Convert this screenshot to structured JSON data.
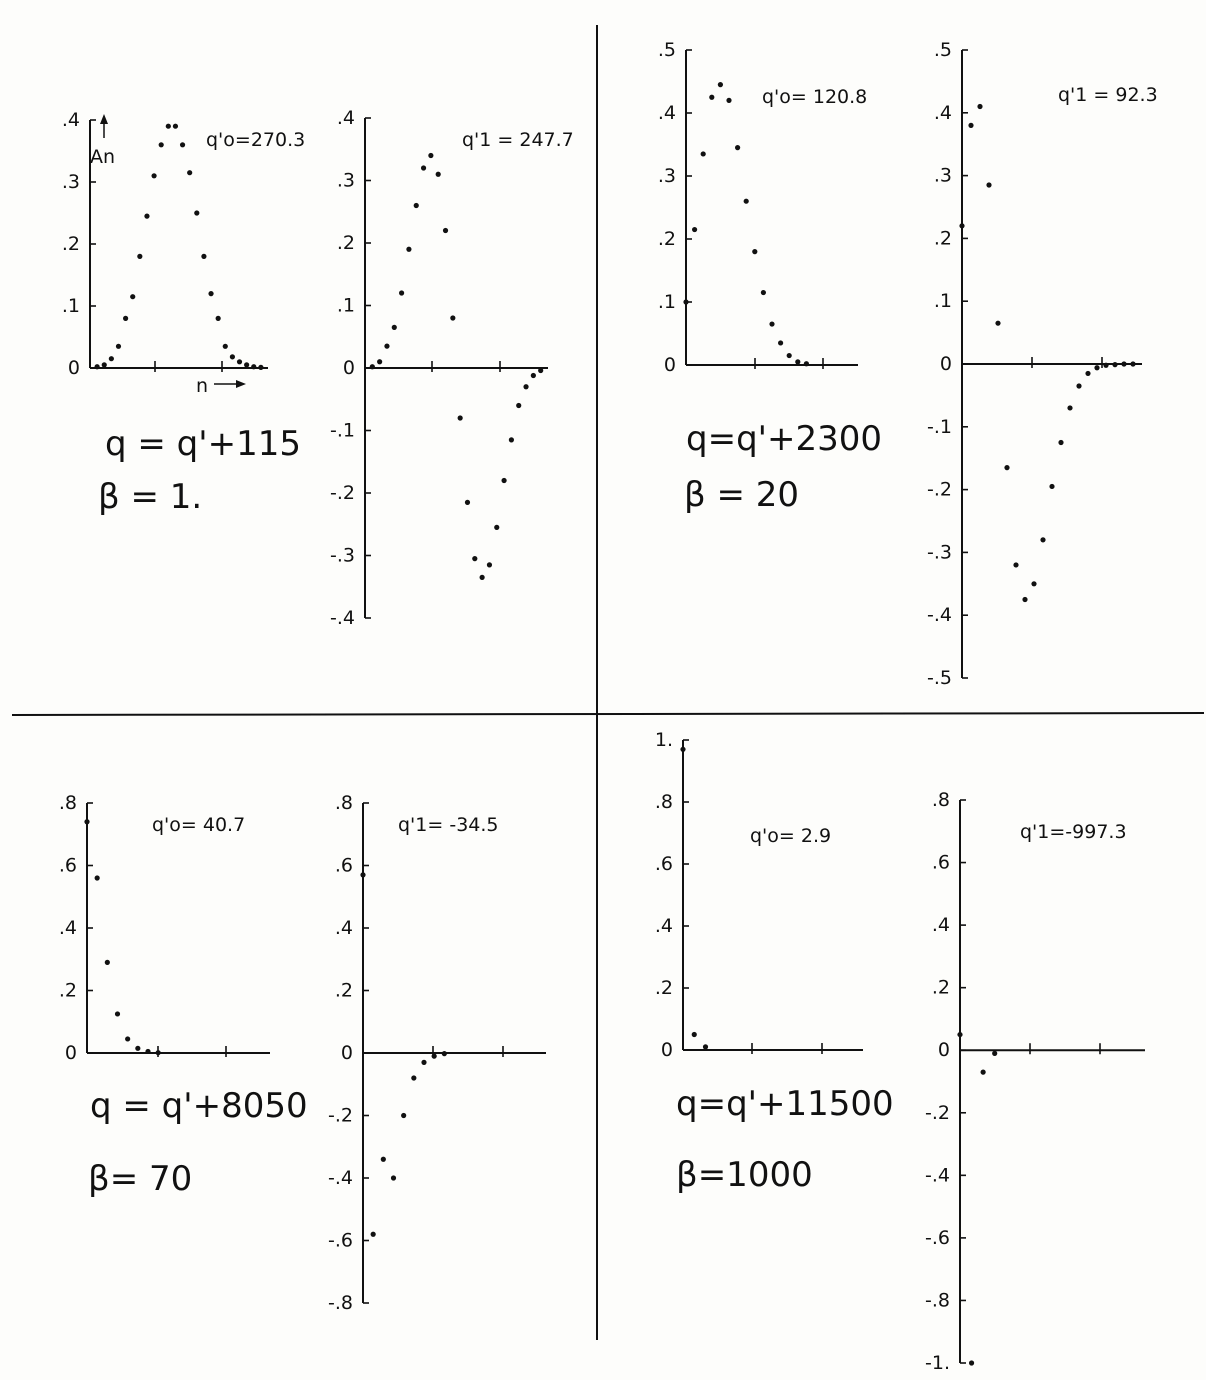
{
  "panels": [
    {
      "equation": "q = q'+115",
      "beta": "β = 1.",
      "y_axis_name": "An",
      "x_axis_name": "n",
      "charts": [
        {
          "type": "scatter",
          "title": "q'o=270.3",
          "ylim": [
            0,
            0.4
          ],
          "yticks": [
            {
              "v": 0,
              "t": "0"
            },
            {
              "v": 0.1,
              "t": ".1"
            },
            {
              "v": 0.2,
              "t": ".2"
            },
            {
              "v": 0.3,
              "t": ".3"
            },
            {
              "v": 0.4,
              "t": ".4"
            }
          ],
          "x": [
            1,
            2,
            3,
            4,
            5,
            6,
            7,
            8,
            9,
            10,
            11,
            12,
            13,
            14,
            15,
            16,
            17,
            18,
            19,
            20,
            21,
            22,
            23,
            24
          ],
          "y": [
            0.002,
            0.005,
            0.015,
            0.035,
            0.08,
            0.115,
            0.18,
            0.245,
            0.31,
            0.36,
            0.39,
            0.39,
            0.36,
            0.315,
            0.25,
            0.18,
            0.12,
            0.08,
            0.035,
            0.018,
            0.01,
            0.005,
            0.002,
            0.001
          ]
        },
        {
          "type": "scatter",
          "title": "q'1 = 247.7",
          "ylim": [
            -0.4,
            0.4
          ],
          "yticks": [
            {
              "v": -0.4,
              "t": "-.4"
            },
            {
              "v": -0.3,
              "t": "-.3"
            },
            {
              "v": -0.2,
              "t": "-.2"
            },
            {
              "v": -0.1,
              "t": "-.1"
            },
            {
              "v": 0,
              "t": "0"
            },
            {
              "v": 0.1,
              "t": ".1"
            },
            {
              "v": 0.2,
              "t": ".2"
            },
            {
              "v": 0.3,
              "t": ".3"
            },
            {
              "v": 0.4,
              "t": ".4"
            }
          ],
          "x": [
            1,
            2,
            3,
            4,
            5,
            6,
            7,
            8,
            9,
            10,
            11,
            12,
            13,
            14,
            15,
            16,
            17,
            18,
            19,
            20,
            21,
            22,
            23,
            24
          ],
          "y": [
            0.002,
            0.01,
            0.035,
            0.065,
            0.12,
            0.19,
            0.26,
            0.32,
            0.34,
            0.31,
            0.22,
            0.08,
            -0.08,
            -0.215,
            -0.305,
            -0.335,
            -0.315,
            -0.255,
            -0.18,
            -0.115,
            -0.06,
            -0.03,
            -0.012,
            -0.004
          ]
        }
      ]
    },
    {
      "equation": "q=q'+2300",
      "beta": "β = 20",
      "charts": [
        {
          "type": "scatter",
          "title": "q'o= 120.8",
          "ylim": [
            0,
            0.5
          ],
          "yticks": [
            {
              "v": 0,
              "t": "0"
            },
            {
              "v": 0.1,
              "t": ".1"
            },
            {
              "v": 0.2,
              "t": ".2"
            },
            {
              "v": 0.3,
              "t": ".3"
            },
            {
              "v": 0.4,
              "t": ".4"
            },
            {
              "v": 0.5,
              "t": ".5"
            }
          ],
          "x": [
            0,
            1,
            2,
            3,
            4,
            5,
            6,
            7,
            8,
            9,
            10,
            11,
            12,
            13,
            14
          ],
          "y": [
            0.1,
            0.215,
            0.335,
            0.425,
            0.445,
            0.42,
            0.345,
            0.26,
            0.18,
            0.115,
            0.065,
            0.035,
            0.015,
            0.005,
            0.002
          ]
        },
        {
          "type": "scatter",
          "title": "q'1 = 92.3",
          "ylim": [
            -0.5,
            0.5
          ],
          "yticks": [
            {
              "v": -0.5,
              "t": "-.5"
            },
            {
              "v": -0.4,
              "t": "-.4"
            },
            {
              "v": -0.3,
              "t": "-.3"
            },
            {
              "v": -0.2,
              "t": "-.2"
            },
            {
              "v": -0.1,
              "t": "-.1"
            },
            {
              "v": 0,
              "t": "0"
            },
            {
              "v": 0.1,
              "t": ".1"
            },
            {
              "v": 0.2,
              "t": ".2"
            },
            {
              "v": 0.3,
              "t": ".3"
            },
            {
              "v": 0.4,
              "t": ".4"
            },
            {
              "v": 0.5,
              "t": ".5"
            }
          ],
          "x": [
            0,
            1,
            2,
            3,
            4,
            5,
            6,
            7,
            8,
            9,
            10,
            11,
            12,
            13,
            14,
            15,
            16,
            17,
            18,
            19
          ],
          "y": [
            0.22,
            0.38,
            0.41,
            0.285,
            0.065,
            -0.165,
            -0.32,
            -0.375,
            -0.35,
            -0.28,
            -0.195,
            -0.125,
            -0.07,
            -0.035,
            -0.015,
            -0.006,
            -0.002,
            -0.001,
            0,
            0
          ]
        }
      ]
    },
    {
      "equation": "q = q'+8050",
      "beta": "β= 70",
      "charts": [
        {
          "type": "scatter",
          "title": "q'o= 40.7",
          "ylim": [
            0,
            0.8
          ],
          "yticks": [
            {
              "v": 0,
              "t": "0"
            },
            {
              "v": 0.2,
              "t": ".2"
            },
            {
              "v": 0.4,
              "t": ".4"
            },
            {
              "v": 0.6,
              "t": ".6"
            },
            {
              "v": 0.8,
              "t": ".8"
            }
          ],
          "x": [
            0,
            1,
            2,
            3,
            4,
            5,
            6,
            7
          ],
          "y": [
            0.74,
            0.56,
            0.29,
            0.125,
            0.045,
            0.015,
            0.005,
            0.001
          ]
        },
        {
          "type": "scatter",
          "title": "q'1= -34.5",
          "ylim": [
            -0.8,
            0.8
          ],
          "yticks": [
            {
              "v": -0.8,
              "t": "-.8"
            },
            {
              "v": -0.6,
              "t": "-.6"
            },
            {
              "v": -0.4,
              "t": "-.4"
            },
            {
              "v": -0.2,
              "t": "-.2"
            },
            {
              "v": 0,
              "t": "0"
            },
            {
              "v": 0.2,
              "t": ".2"
            },
            {
              "v": 0.4,
              "t": ".4"
            },
            {
              "v": 0.6,
              "t": ".6"
            },
            {
              "v": 0.8,
              "t": ".8"
            }
          ],
          "x": [
            0,
            1,
            2,
            3,
            4,
            5,
            6,
            7,
            8
          ],
          "y": [
            0.57,
            -0.58,
            -0.34,
            -0.4,
            -0.2,
            -0.08,
            -0.03,
            -0.01,
            -0.002
          ]
        }
      ]
    },
    {
      "equation": "q=q'+11500",
      "beta": "β=1000",
      "charts": [
        {
          "type": "scatter",
          "title": "q'o= 2.9",
          "ylim": [
            0,
            1.0
          ],
          "yticks": [
            {
              "v": 0,
              "t": "0"
            },
            {
              "v": 0.2,
              "t": ".2"
            },
            {
              "v": 0.4,
              "t": ".4"
            },
            {
              "v": 0.6,
              "t": ".6"
            },
            {
              "v": 0.8,
              "t": ".8"
            },
            {
              "v": 1.0,
              "t": "1."
            }
          ],
          "x": [
            0,
            1,
            2
          ],
          "y": [
            0.97,
            0.05,
            0.01
          ]
        },
        {
          "type": "scatter",
          "title": "q'1=-997.3",
          "ylim": [
            -1.0,
            0.8
          ],
          "yticks": [
            {
              "v": -1.0,
              "t": "-1."
            },
            {
              "v": -0.8,
              "t": "-.8"
            },
            {
              "v": -0.6,
              "t": "-.6"
            },
            {
              "v": -0.4,
              "t": "-.4"
            },
            {
              "v": -0.2,
              "t": "-.2"
            },
            {
              "v": 0,
              "t": "0"
            },
            {
              "v": 0.2,
              "t": ".2"
            },
            {
              "v": 0.4,
              "t": ".4"
            },
            {
              "v": 0.6,
              "t": ".6"
            },
            {
              "v": 0.8,
              "t": ".8"
            }
          ],
          "x": [
            0,
            1,
            2,
            3
          ],
          "y": [
            0.05,
            -1.0,
            -0.07,
            -0.01
          ]
        }
      ]
    }
  ]
}
